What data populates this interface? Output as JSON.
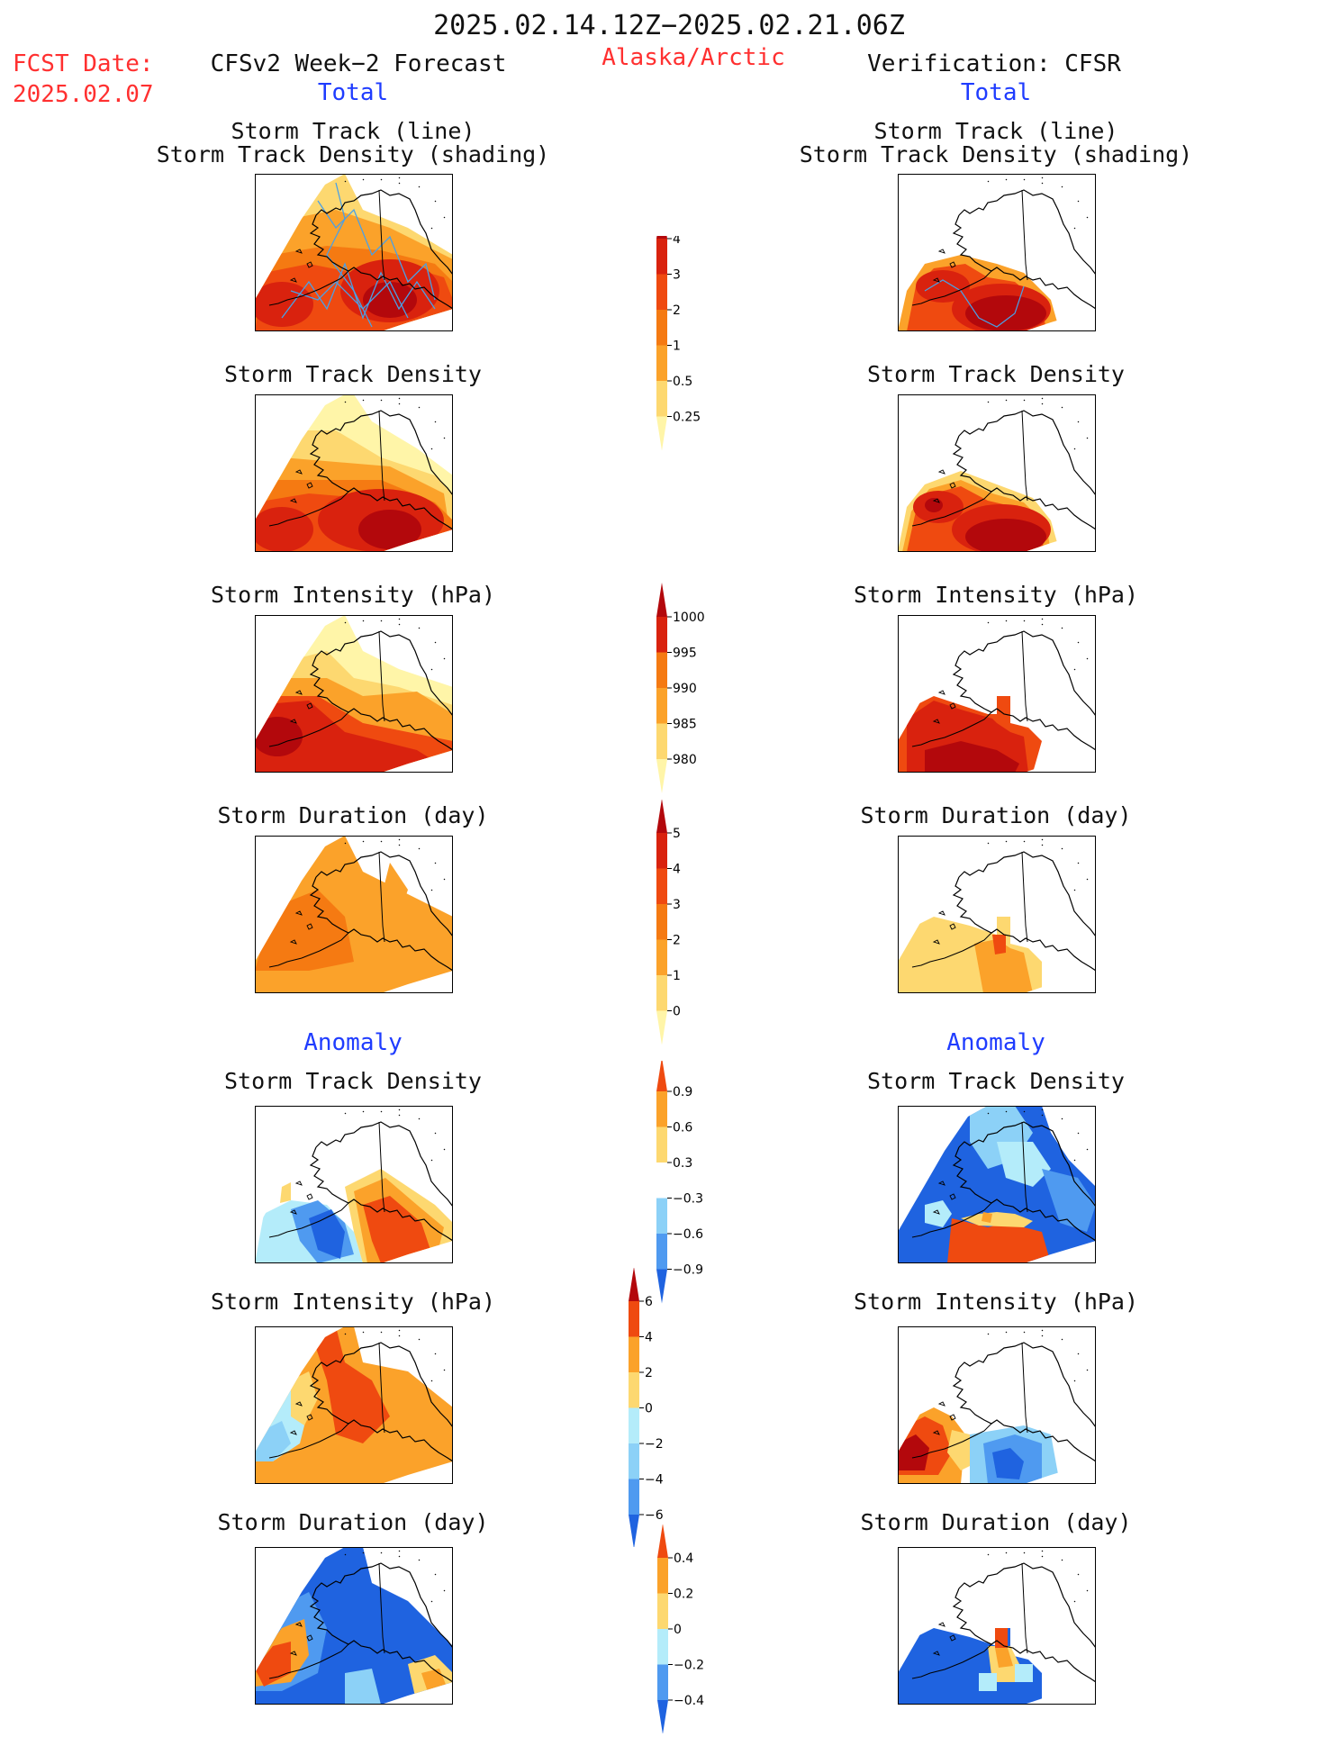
{
  "header": {
    "valid_period": "2025.02.14.12Z−2025.02.21.06Z",
    "fcst_label": "FCST Date:",
    "fcst_date": "2025.02.07",
    "model_label": "CFSv2 Week−2 Forecast",
    "region": "Alaska/Arctic",
    "verification_label": "Verification: CFSR",
    "left_total": "Total",
    "right_total": "Total",
    "left_anomaly": "Anomaly",
    "right_anomaly": "Anomaly"
  },
  "panel_titles": {
    "track_line": "Storm Track (line)",
    "track_shading": "Storm Track Density (shading)",
    "density": "Storm Track Density",
    "intensity": "Storm Intensity (hPa)",
    "duration": "Storm Duration (day)"
  },
  "colors": {
    "light_yellow": "#fff5a8",
    "yellow": "#fdd870",
    "gold": "#fba22a",
    "orange": "#f57a12",
    "red_orange": "#ef4a10",
    "red": "#d9220e",
    "dark_red": "#b3080c",
    "light_blue": "#b4ecfa",
    "sky_blue": "#8cd1f7",
    "mid_blue": "#4f9af0",
    "blue": "#1f63e0",
    "track_line": "#4aa0e6"
  },
  "chart_data": [
    {
      "type": "heatmap",
      "id": "colorbar_total_density",
      "ticks": [
        "4",
        "3",
        "2",
        "1",
        "0.5",
        "0.25"
      ],
      "bins": [
        0.25,
        0.5,
        1,
        2,
        3,
        4
      ],
      "colors": [
        "#fff5a8",
        "#fdd870",
        "#fba22a",
        "#f57a12",
        "#ef4a10",
        "#d9220e",
        "#b3080c"
      ]
    },
    {
      "type": "heatmap",
      "id": "colorbar_total_intensity",
      "ticks": [
        "1000",
        "995",
        "990",
        "985",
        "980"
      ],
      "bins": [
        980,
        985,
        990,
        995,
        1000
      ],
      "colors": [
        "#fff5a8",
        "#fdd870",
        "#fba22a",
        "#f57a12",
        "#d9220e",
        "#b3080c"
      ]
    },
    {
      "type": "heatmap",
      "id": "colorbar_total_duration",
      "ticks": [
        "5",
        "4",
        "3",
        "2",
        "1",
        "0"
      ],
      "bins": [
        0,
        1,
        2,
        3,
        4,
        5
      ],
      "colors": [
        "#fff5a8",
        "#fdd870",
        "#fba22a",
        "#f57a12",
        "#ef4a10",
        "#d9220e",
        "#b3080c"
      ]
    },
    {
      "type": "heatmap",
      "id": "colorbar_anom_density",
      "ticks": [
        "0.9",
        "0.6",
        "0.3",
        "−0.3",
        "−0.6",
        "−0.9"
      ],
      "bins": [
        -0.9,
        -0.6,
        -0.3,
        0.3,
        0.6,
        0.9
      ],
      "colors": [
        "#1f63e0",
        "#4f9af0",
        "#8cd1f7",
        "#ffffff",
        "#fdd870",
        "#fba22a",
        "#ef4a10"
      ]
    },
    {
      "type": "heatmap",
      "id": "colorbar_anom_intensity",
      "ticks": [
        "6",
        "4",
        "2",
        "0",
        "−2",
        "−4",
        "−6"
      ],
      "bins": [
        -6,
        -4,
        -2,
        0,
        2,
        4,
        6
      ],
      "colors": [
        "#1f63e0",
        "#4f9af0",
        "#8cd1f7",
        "#b4ecfa",
        "#fdd870",
        "#fba22a",
        "#ef4a10",
        "#b3080c"
      ]
    },
    {
      "type": "heatmap",
      "id": "colorbar_anom_duration",
      "ticks": [
        "0.4",
        "0.2",
        "0",
        "−0.2",
        "−0.4"
      ],
      "bins": [
        -0.4,
        -0.2,
        0,
        0.2,
        0.4
      ],
      "colors": [
        "#1f63e0",
        "#4f9af0",
        "#b4ecfa",
        "#fdd870",
        "#fba22a",
        "#ef4a10"
      ]
    }
  ]
}
